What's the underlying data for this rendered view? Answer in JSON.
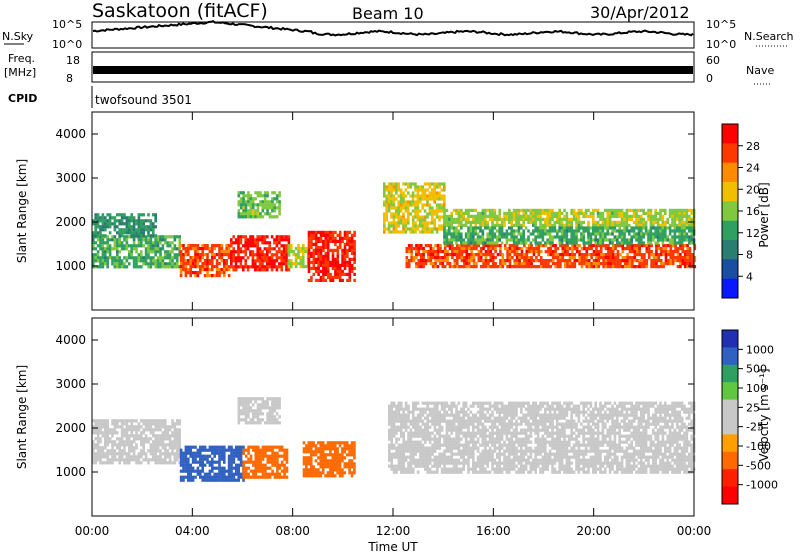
{
  "header": {
    "station": "Saskatoon (fitACF)",
    "beam": "Beam 10",
    "date": "30/Apr/2012"
  },
  "status_panels": {
    "nsky_label": "N.Sky",
    "nsearch_label": "N.Search",
    "noise_ticks": [
      "10^5",
      "10^0"
    ],
    "freq_label_top": "Freq.",
    "freq_label_unit": "[MHz]",
    "freq_ticks": [
      "18",
      "8"
    ],
    "nave_label": "Nave",
    "nave_ticks": [
      "60",
      "0"
    ],
    "cpid_label": "CPID",
    "cpid_value": "twofsound 3501"
  },
  "colorbars": {
    "power": {
      "label": "Power [dB]",
      "ticks": [
        "28",
        "24",
        "20",
        "16",
        "12",
        "8",
        "4"
      ],
      "colors": [
        "#ff0000",
        "#ff3800",
        "#ff8c00",
        "#f0c000",
        "#80c840",
        "#30a060",
        "#2a7e70",
        "#1a4ea0",
        "#0818ff"
      ]
    },
    "velocity": {
      "label": "Velocity [m s⁻¹]",
      "ticks": [
        "1000",
        "500",
        "100",
        "25",
        "-25",
        "-100",
        "-500",
        "-1000"
      ],
      "colors": [
        "#2030b0",
        "#3060c0",
        "#30a060",
        "#60c840",
        "#c8c8c8",
        "#c8c8c8",
        "#ffa000",
        "#ff6a00",
        "#ff2000",
        "#ff0000"
      ]
    }
  },
  "chart_data": [
    {
      "type": "heatmap",
      "panel": "power",
      "ylabel": "Slant Range [km]",
      "ylim": [
        0,
        4500
      ],
      "yticks": [
        "4000",
        "3000",
        "2000",
        "1000"
      ],
      "xlim": [
        0,
        24
      ],
      "xticks": [
        "00:00",
        "04:00",
        "08:00",
        "12:00",
        "16:00",
        "20:00",
        "00:00"
      ],
      "bands": [
        {
          "t0": 0,
          "t1": 3.5,
          "r0": 1000,
          "r1": 1700,
          "value": 12
        },
        {
          "t0": 0,
          "t1": 2.5,
          "r0": 1700,
          "r1": 2200,
          "value": 10
        },
        {
          "t0": 3.5,
          "t1": 5.5,
          "r0": 800,
          "r1": 1500,
          "value": 26
        },
        {
          "t0": 5.5,
          "t1": 7.8,
          "r0": 900,
          "r1": 1700,
          "value": 28
        },
        {
          "t0": 7.8,
          "t1": 8.6,
          "r0": 1000,
          "r1": 1500,
          "value": 16
        },
        {
          "t0": 8.6,
          "t1": 10.5,
          "r0": 700,
          "r1": 1800,
          "value": 28
        },
        {
          "t0": 5.8,
          "t1": 7.5,
          "r0": 2100,
          "r1": 2700,
          "value": 14
        },
        {
          "t0": 11.6,
          "t1": 14,
          "r0": 1800,
          "r1": 2900,
          "value": 18
        },
        {
          "t0": 14,
          "t1": 24,
          "r0": 1900,
          "r1": 2300,
          "value": 16
        },
        {
          "t0": 12.5,
          "t1": 24,
          "r0": 1000,
          "r1": 1500,
          "value": 26
        },
        {
          "t0": 14,
          "t1": 24,
          "r0": 1500,
          "r1": 1900,
          "value": 12
        }
      ]
    },
    {
      "type": "heatmap",
      "panel": "velocity",
      "ylabel": "Slant Range [km]",
      "ylim": [
        0,
        4500
      ],
      "yticks": [
        "4000",
        "3000",
        "2000",
        "1000"
      ],
      "xlim": [
        0,
        24
      ],
      "xticks": [
        "00:00",
        "04:00",
        "08:00",
        "12:00",
        "16:00",
        "20:00",
        "00:00"
      ],
      "xlabel": "Time UT",
      "bands": [
        {
          "t0": 0,
          "t1": 3.5,
          "r0": 1200,
          "r1": 2200,
          "value": 0
        },
        {
          "t0": 3.5,
          "t1": 6,
          "r0": 800,
          "r1": 1600,
          "value": 150
        },
        {
          "t0": 6,
          "t1": 7.8,
          "r0": 900,
          "r1": 1600,
          "value": -200
        },
        {
          "t0": 8.4,
          "t1": 10.5,
          "r0": 900,
          "r1": 1700,
          "value": -300
        },
        {
          "t0": 5.8,
          "t1": 7.5,
          "r0": 2100,
          "r1": 2700,
          "value": 0
        },
        {
          "t0": 11.8,
          "t1": 24,
          "r0": 1000,
          "r1": 2600,
          "value": 0
        }
      ]
    }
  ]
}
